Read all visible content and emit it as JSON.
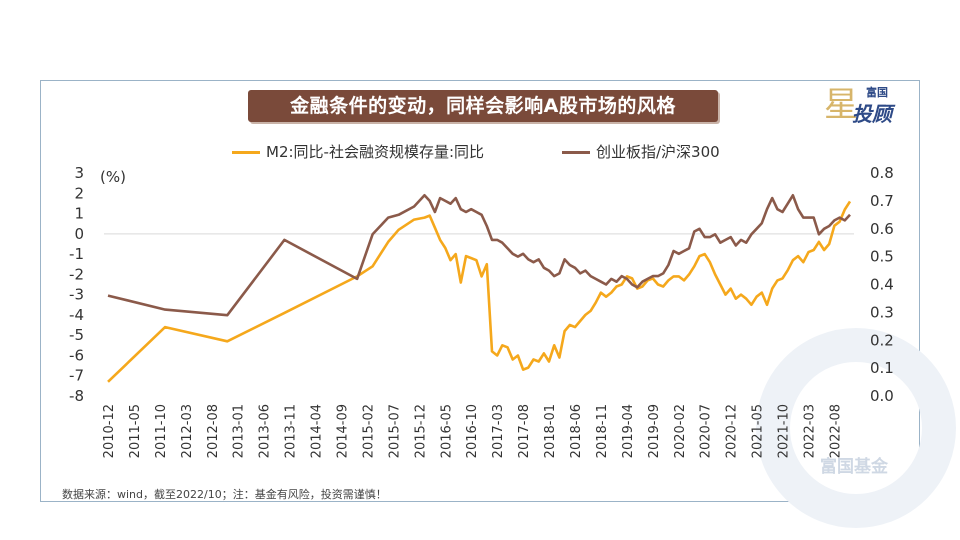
{
  "title": "金融条件的变动，同样会影响A股市场的风格",
  "logo": {
    "top_text": "富国",
    "star_glyph": "星",
    "main_text": "投顾"
  },
  "watermark": "富国基金",
  "source": "数据来源：wind，截至2022/10；注：基金有风险，投资需谨慎！",
  "colors": {
    "series1": "#f5a81c",
    "series2": "#8b5a4a",
    "title_bg": "#7a4a3a"
  },
  "chart_data": {
    "type": "line",
    "title": "金融条件的变动，同样会影响A股市场的风格",
    "left_axis": {
      "unit_label": "(%)",
      "min": -8,
      "max": 3,
      "ticks": [
        3,
        2,
        1,
        0,
        -1,
        -2,
        -3,
        -4,
        -5,
        -6,
        -7,
        -8
      ],
      "tick_labels": [
        "3",
        "2",
        "1",
        "0",
        "-1",
        "-2",
        "-3",
        "-4",
        "-5",
        "-6",
        "-7",
        "-8"
      ]
    },
    "right_axis": {
      "min": 0.0,
      "max": 0.8,
      "ticks": [
        0.8,
        0.7,
        0.6,
        0.5,
        0.4,
        0.3,
        0.2,
        0.1,
        0.0
      ],
      "tick_labels": [
        "0.8",
        "0.7",
        "0.6",
        "0.5",
        "0.4",
        "0.3",
        "0.2",
        "0.1",
        "0.0"
      ]
    },
    "x_range": [
      0,
      143
    ],
    "x_tick_labels": [
      "2010-12",
      "2011-05",
      "2011-10",
      "2012-03",
      "2012-08",
      "2013-01",
      "2013-06",
      "2013-11",
      "2014-04",
      "2014-09",
      "2015-02",
      "2015-07",
      "2015-12",
      "2016-05",
      "2016-10",
      "2017-03",
      "2017-08",
      "2018-01",
      "2018-06",
      "2018-11",
      "2019-04",
      "2019-09",
      "2020-02",
      "2020-07",
      "2020-12",
      "2021-05",
      "2021-10",
      "2022-03",
      "2022-08"
    ],
    "x_tick_index": [
      0,
      5,
      10,
      15,
      20,
      25,
      30,
      35,
      40,
      45,
      50,
      55,
      60,
      65,
      70,
      75,
      80,
      85,
      90,
      95,
      100,
      105,
      110,
      115,
      120,
      125,
      130,
      135,
      140
    ],
    "legend_position": "top-center",
    "series": [
      {
        "name": "M2:同比-社会融资规模存量:同比",
        "axis": "left",
        "color": "#f5a81c",
        "x": [
          0,
          11,
          23,
          34,
          48,
          51,
          54,
          56,
          59,
          61,
          62,
          63,
          64,
          65,
          66,
          67,
          68,
          69,
          70,
          71,
          72,
          73,
          74,
          75,
          76,
          77,
          78,
          79,
          80,
          81,
          82,
          83,
          84,
          85,
          86,
          87,
          88,
          89,
          90,
          91,
          92,
          93,
          94,
          95,
          96,
          97,
          98,
          99,
          100,
          101,
          102,
          103,
          104,
          105,
          106,
          107,
          108,
          109,
          110,
          111,
          112,
          113,
          114,
          115,
          116,
          117,
          118,
          119,
          120,
          121,
          122,
          123,
          124,
          125,
          126,
          127,
          128,
          129,
          130,
          131,
          132,
          133,
          134,
          135,
          136,
          137,
          138,
          139,
          140,
          141,
          142,
          143
        ],
        "y": [
          -7.3,
          -4.6,
          -5.3,
          -3.9,
          -2.1,
          -1.6,
          -0.4,
          0.2,
          0.7,
          0.8,
          0.9,
          0.3,
          -0.3,
          -0.7,
          -1.3,
          -1.0,
          -2.4,
          -1.1,
          -1.2,
          -1.3,
          -2.1,
          -1.5,
          -5.8,
          -6.0,
          -5.5,
          -5.6,
          -6.2,
          -6.0,
          -6.7,
          -6.6,
          -6.2,
          -6.3,
          -5.9,
          -6.3,
          -5.5,
          -6.1,
          -4.8,
          -4.5,
          -4.6,
          -4.3,
          -4.0,
          -3.8,
          -3.4,
          -2.9,
          -3.1,
          -2.9,
          -2.6,
          -2.5,
          -2.1,
          -2.2,
          -2.7,
          -2.6,
          -2.3,
          -2.2,
          -2.5,
          -2.6,
          -2.3,
          -2.1,
          -2.1,
          -2.3,
          -2.0,
          -1.6,
          -1.1,
          -1.0,
          -1.4,
          -2.0,
          -2.5,
          -3.0,
          -2.7,
          -3.2,
          -3.0,
          -3.2,
          -3.5,
          -3.1,
          -2.9,
          -3.5,
          -2.7,
          -2.3,
          -2.2,
          -1.8,
          -1.3,
          -1.1,
          -1.4,
          -0.9,
          -0.8,
          -0.4,
          -0.8,
          -0.5,
          0.4,
          0.6,
          1.2,
          1.6
        ]
      },
      {
        "name": "创业板指/沪深300",
        "axis": "right",
        "color": "#8b5a4a",
        "x": [
          0,
          11,
          23,
          34,
          48,
          51,
          54,
          56,
          59,
          61,
          62,
          63,
          64,
          65,
          66,
          67,
          68,
          69,
          70,
          71,
          72,
          73,
          74,
          75,
          76,
          77,
          78,
          79,
          80,
          81,
          82,
          83,
          84,
          85,
          86,
          87,
          88,
          89,
          90,
          91,
          92,
          93,
          94,
          95,
          96,
          97,
          98,
          99,
          100,
          101,
          102,
          103,
          104,
          105,
          106,
          107,
          108,
          109,
          110,
          111,
          112,
          113,
          114,
          115,
          116,
          117,
          118,
          119,
          120,
          121,
          122,
          123,
          124,
          125,
          126,
          127,
          128,
          129,
          130,
          131,
          132,
          133,
          134,
          135,
          136,
          137,
          138,
          139,
          140,
          141,
          142,
          143
        ],
        "y": [
          0.36,
          0.31,
          0.29,
          0.56,
          0.42,
          0.58,
          0.64,
          0.65,
          0.68,
          0.72,
          0.7,
          0.66,
          0.71,
          0.7,
          0.69,
          0.71,
          0.67,
          0.66,
          0.67,
          0.66,
          0.65,
          0.61,
          0.56,
          0.56,
          0.55,
          0.53,
          0.51,
          0.5,
          0.51,
          0.49,
          0.48,
          0.49,
          0.46,
          0.45,
          0.43,
          0.44,
          0.49,
          0.47,
          0.46,
          0.44,
          0.45,
          0.43,
          0.42,
          0.41,
          0.4,
          0.42,
          0.41,
          0.43,
          0.42,
          0.4,
          0.39,
          0.41,
          0.42,
          0.43,
          0.43,
          0.44,
          0.47,
          0.52,
          0.51,
          0.52,
          0.53,
          0.59,
          0.6,
          0.57,
          0.57,
          0.58,
          0.55,
          0.56,
          0.57,
          0.54,
          0.56,
          0.55,
          0.58,
          0.6,
          0.62,
          0.67,
          0.71,
          0.67,
          0.66,
          0.69,
          0.72,
          0.67,
          0.64,
          0.64,
          0.64,
          0.58,
          0.6,
          0.61,
          0.63,
          0.64,
          0.63,
          0.65
        ]
      }
    ]
  }
}
